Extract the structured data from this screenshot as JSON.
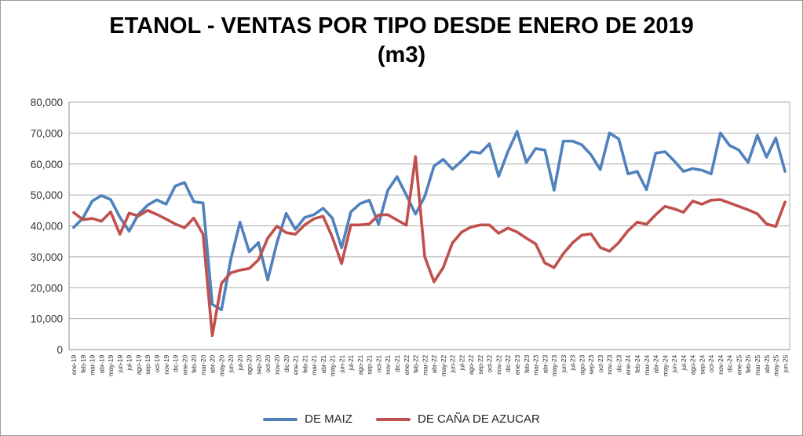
{
  "title": {
    "line1": "ETANOL - VENTAS POR TIPO DESDE ENERO DE 2019",
    "line2": "(m3)"
  },
  "chart_data": {
    "type": "line",
    "title": "ETANOL - VENTAS POR TIPO DESDE ENERO DE 2019 (m3)",
    "xlabel": "",
    "ylabel": "",
    "ylim": [
      0,
      80000
    ],
    "grid": "horizontal",
    "legend_position": "bottom",
    "grid_color": "#ababab",
    "axis_color": "#8e8e8e",
    "label_color": "#333333",
    "y_ticks": [
      0,
      10000,
      20000,
      30000,
      40000,
      50000,
      60000,
      70000,
      80000
    ],
    "y_tick_labels": [
      "0",
      "10,000",
      "20,000",
      "30,000",
      "40,000",
      "50,000",
      "60,000",
      "70,000",
      "80,000"
    ],
    "categories": [
      "ene-19",
      "feb-19",
      "mar-19",
      "abr-19",
      "may-19",
      "jun-19",
      "jul-19",
      "ago-19",
      "sep-19",
      "oct-19",
      "nov-19",
      "dic-19",
      "ene-20",
      "feb-20",
      "mar-20",
      "abr-20",
      "may-20",
      "jun-20",
      "jul-20",
      "ago-20",
      "sep-20",
      "oct-20",
      "nov-20",
      "dic-20",
      "ene-21",
      "feb-21",
      "mar-21",
      "abr-21",
      "may-21",
      "jun-21",
      "jul-21",
      "ago-21",
      "sep-21",
      "oct-21",
      "nov-21",
      "dic-21",
      "ene-22",
      "feb-22",
      "mar-22",
      "abr-22",
      "may-22",
      "jun-22",
      "jul-22",
      "ago-22",
      "sep-22",
      "oct-22",
      "nov-22",
      "dic-22",
      "ene-23",
      "feb-23",
      "mar-23",
      "abr-23",
      "may-23",
      "jun-23",
      "jul-23",
      "ago-23",
      "sep-23",
      "oct-23",
      "nov-23",
      "dic-23",
      "ene-24",
      "feb-24",
      "mar-24",
      "abr-24",
      "may-24",
      "jun-24",
      "jul-24",
      "ago-24",
      "sep-24",
      "oct-24",
      "nov-24",
      "dic-24",
      "ene-25",
      "feb-25",
      "mar-25",
      "abr-25",
      "may-25",
      "jun-25"
    ],
    "series": [
      {
        "name": "DE MAIZ",
        "color": "#4F81BD",
        "values": [
          39500,
          42500,
          48000,
          49800,
          48500,
          42800,
          38300,
          43700,
          46700,
          48400,
          47000,
          52900,
          54000,
          47800,
          47400,
          14600,
          12900,
          29100,
          41200,
          31600,
          34600,
          22500,
          34600,
          44000,
          38900,
          42700,
          43600,
          45700,
          42500,
          32900,
          44500,
          47200,
          48300,
          40500,
          51500,
          55900,
          50000,
          43800,
          49500,
          59300,
          61500,
          58300,
          61000,
          64000,
          63500,
          66500,
          56000,
          64000,
          70500,
          60500,
          65000,
          64500,
          51500,
          67400,
          67400,
          66200,
          63000,
          58200,
          70000,
          68100,
          56800,
          57600,
          51700,
          63500,
          64000,
          61000,
          57600,
          58500,
          58000,
          56800,
          70000,
          66000,
          64500,
          60500,
          69300,
          62200,
          68400,
          57600
        ]
      },
      {
        "name": "DE CAÑA DE AZUCAR",
        "color": "#C0504D",
        "values": [
          44300,
          42000,
          42400,
          41500,
          44500,
          37300,
          44100,
          43200,
          45000,
          43700,
          42200,
          40600,
          39400,
          42500,
          37300,
          4500,
          21400,
          24800,
          25700,
          26200,
          29000,
          36000,
          39900,
          37800,
          37300,
          40300,
          42300,
          43100,
          36300,
          27800,
          40300,
          40300,
          40600,
          43500,
          43600,
          41900,
          40200,
          62400,
          30000,
          21900,
          26500,
          34500,
          38000,
          39600,
          40300,
          40300,
          37600,
          39300,
          38000,
          36000,
          34200,
          28000,
          26500,
          31000,
          34500,
          37000,
          37400,
          33000,
          31800,
          34600,
          38400,
          41200,
          40500,
          43600,
          46300,
          45500,
          44400,
          48000,
          47000,
          48300,
          48500,
          47400,
          46300,
          45200,
          43900,
          40600,
          39800,
          47700
        ]
      }
    ]
  }
}
